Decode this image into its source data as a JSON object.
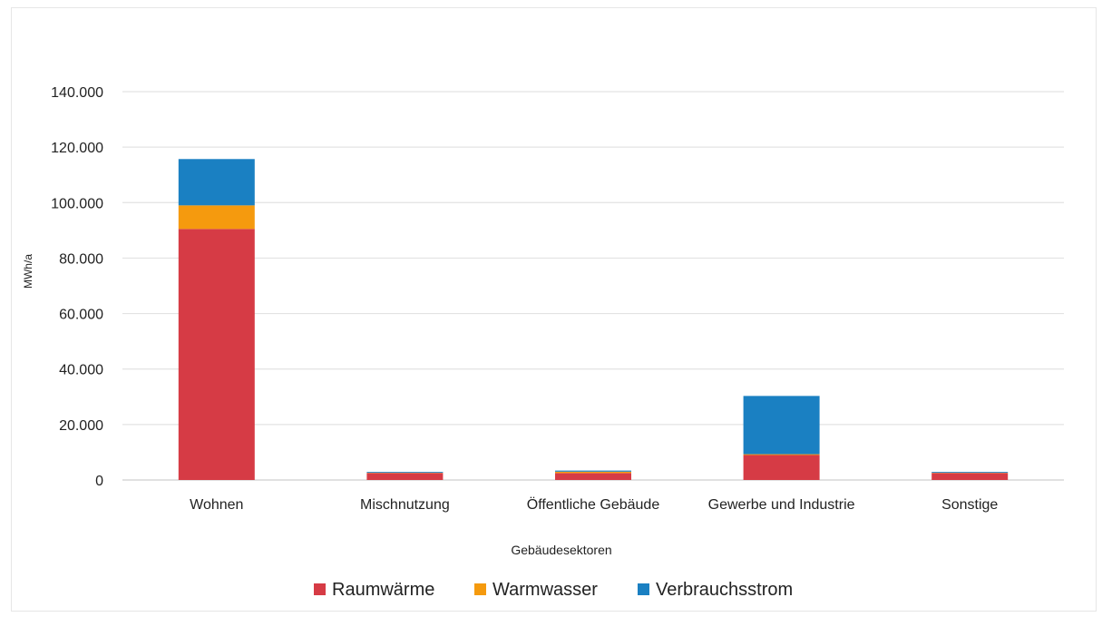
{
  "chart_data": {
    "type": "bar",
    "stacked": true,
    "title": "",
    "xlabel": "Gebäudesektoren",
    "ylabel": "MWh/a",
    "ylim": [
      0,
      140000
    ],
    "yticks": [
      0,
      20000,
      40000,
      60000,
      80000,
      100000,
      120000,
      140000
    ],
    "ytick_labels": [
      "0",
      "20.000",
      "40.000",
      "60.000",
      "80.000",
      "100.000",
      "120.000",
      "140.000"
    ],
    "categories": [
      "Wohnen",
      "Mischnutzung",
      "Öffentliche Gebäude",
      "Gewerbe und Industrie",
      "Sonstige"
    ],
    "series": [
      {
        "name": "Raumwärme",
        "color": "#d63b45",
        "values": [
          90500,
          2500,
          2500,
          9000,
          2500
        ]
      },
      {
        "name": "Warmwasser",
        "color": "#f59a0e",
        "values": [
          8500,
          100,
          500,
          300,
          100
        ]
      },
      {
        "name": "Verbrauchsstrom",
        "color": "#1a80c2",
        "values": [
          16700,
          300,
          400,
          21000,
          300
        ]
      }
    ],
    "grid": true,
    "legend_position": "bottom"
  }
}
